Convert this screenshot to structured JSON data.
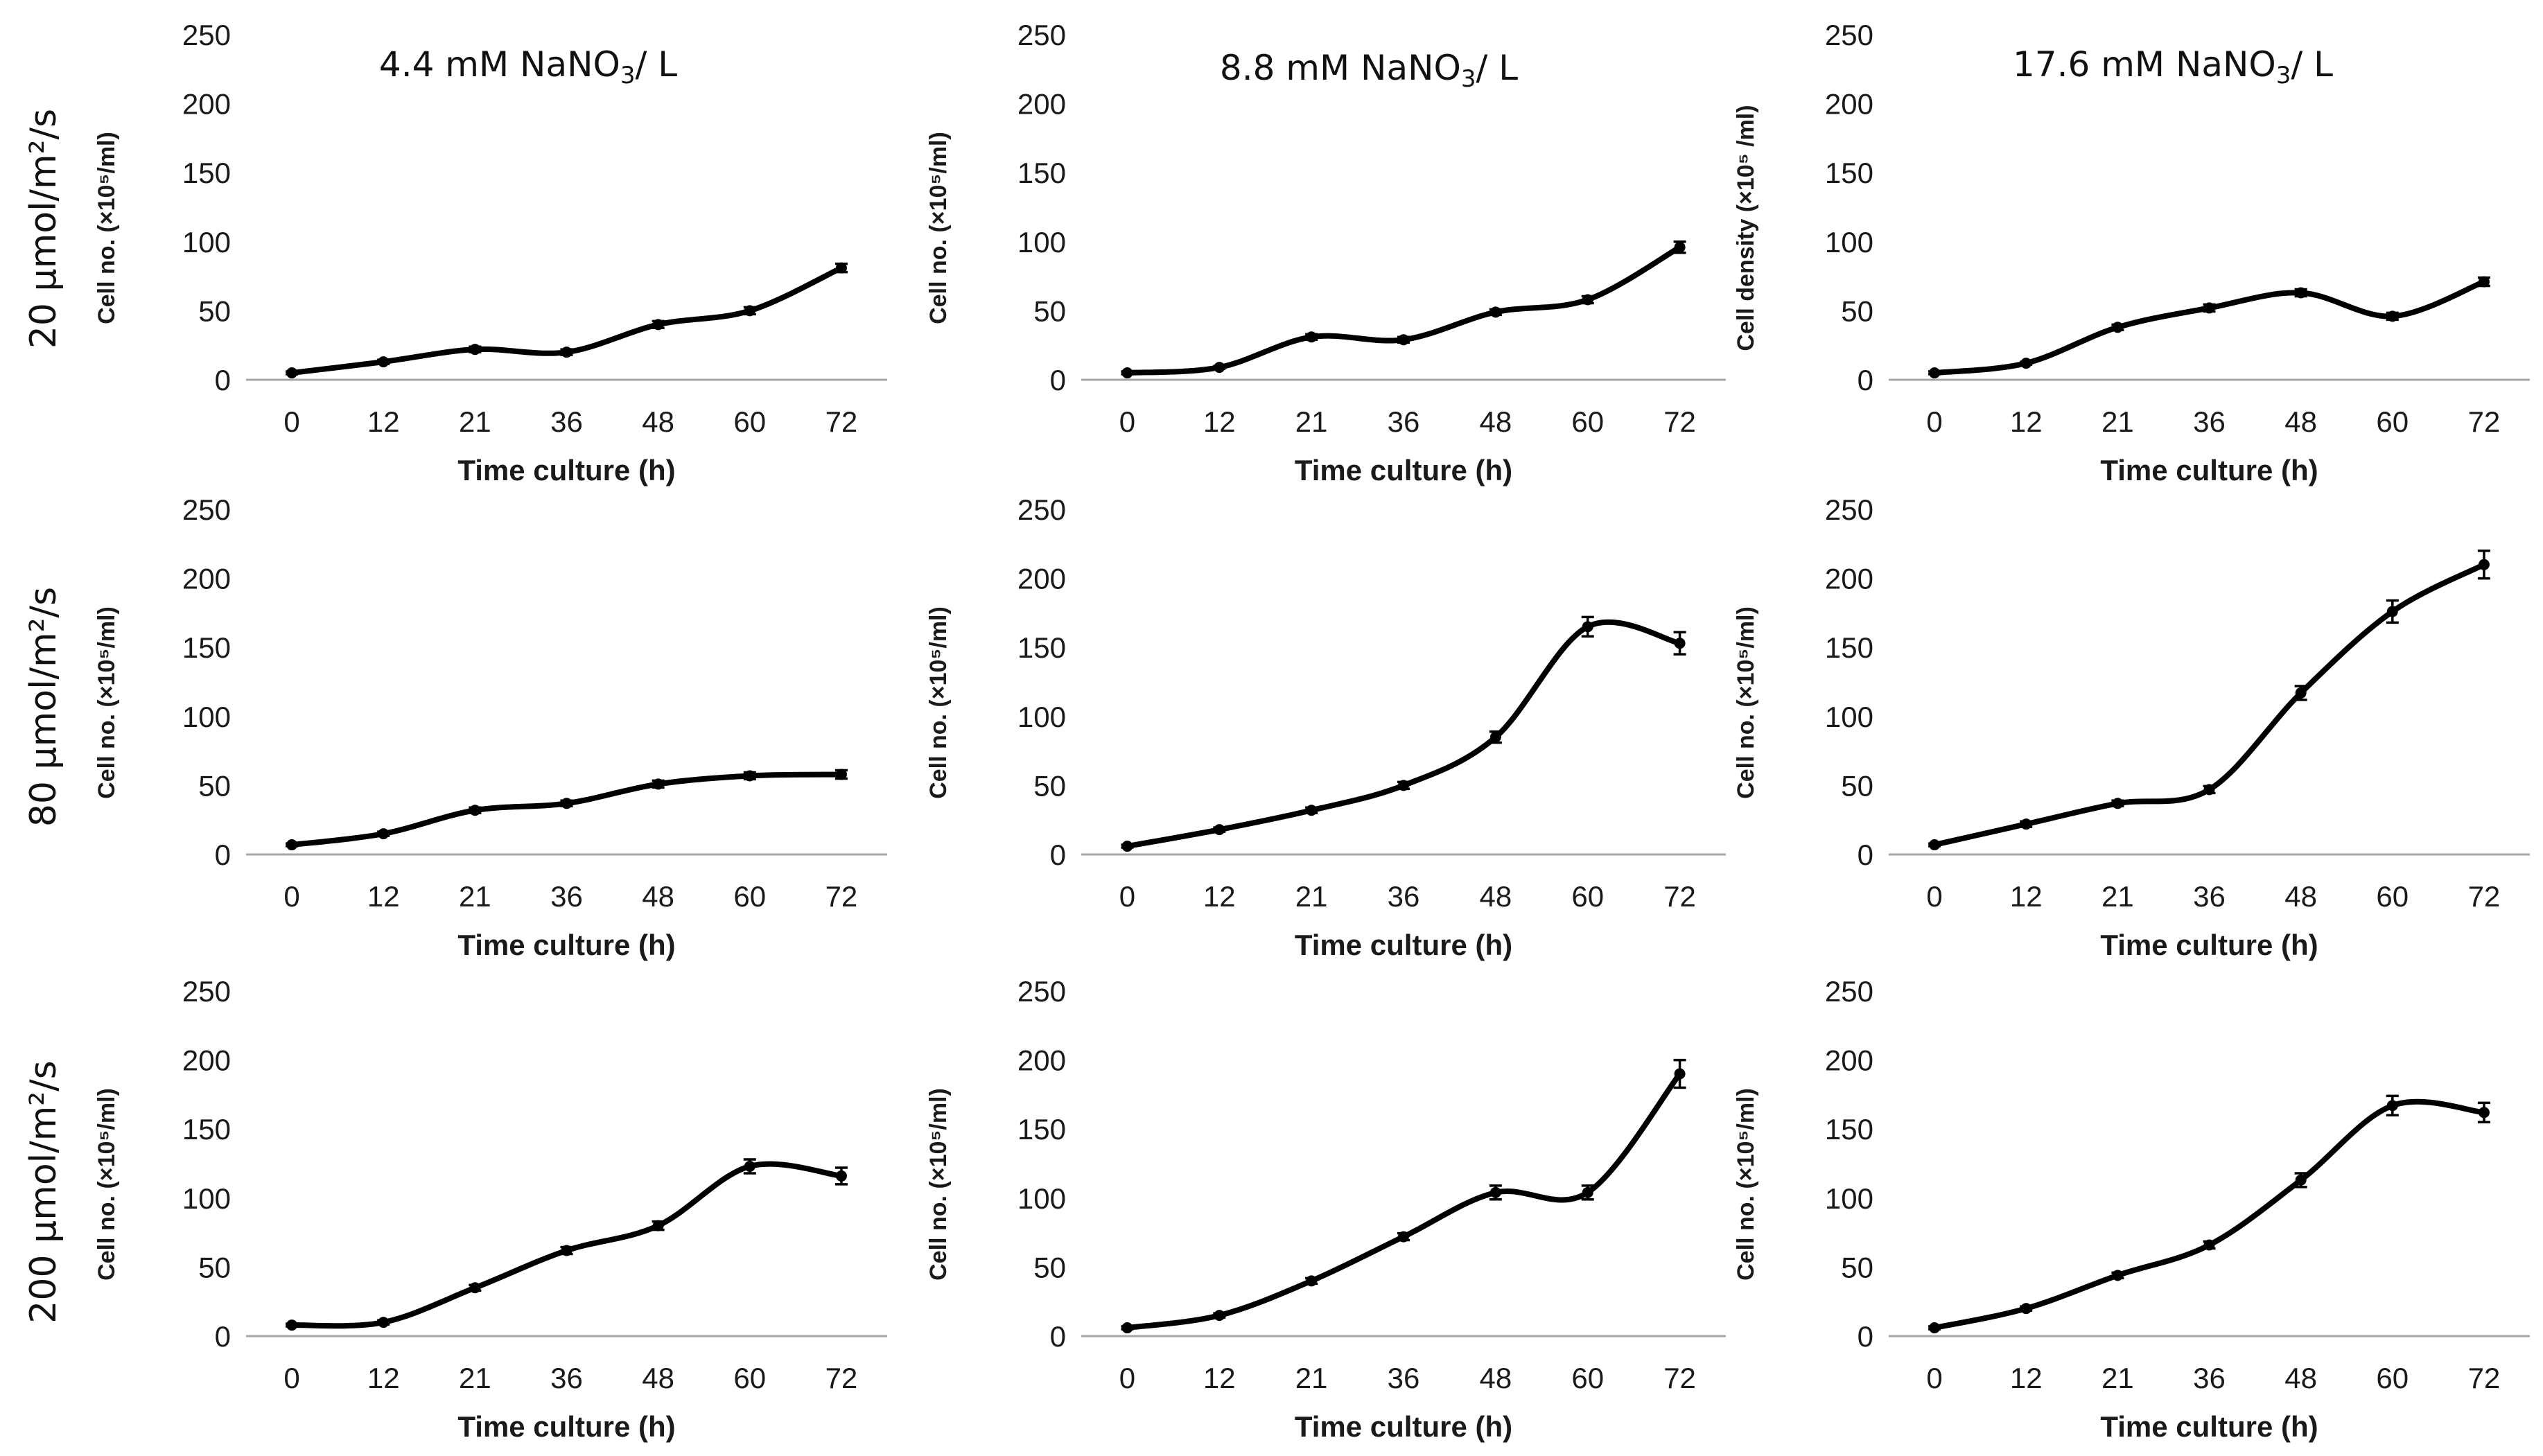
{
  "columns": [
    "4.4 mM NaNO3/ L",
    "8.8 mM NaNO3/ L",
    "17.6 mM NaNO3/ L"
  ],
  "rows": [
    "20 µmol/m²/s",
    "80 µmol/m²/s",
    "200 µmol/m²/s"
  ],
  "chart_data": [
    {
      "type": "line",
      "row": 0,
      "col": 0,
      "categories": [
        "0",
        "12",
        "21",
        "36",
        "48",
        "60",
        "72"
      ],
      "values": [
        5,
        13,
        22,
        20,
        40,
        50,
        81
      ],
      "errors": [
        1,
        1.5,
        2,
        2,
        2.5,
        2.5,
        3
      ],
      "xlabel": "Time culture (h)",
      "ylabel": "Cell no. (×10⁵/ml)",
      "ylim": [
        0,
        250
      ],
      "yticks": [
        0,
        50,
        100,
        150,
        200,
        250
      ]
    },
    {
      "type": "line",
      "row": 0,
      "col": 1,
      "categories": [
        "0",
        "12",
        "21",
        "36",
        "48",
        "60",
        "72"
      ],
      "values": [
        5,
        9,
        31,
        29,
        49,
        58,
        96
      ],
      "errors": [
        1,
        1,
        2,
        2,
        2,
        2.5,
        4
      ],
      "xlabel": "Time culture (h)",
      "ylabel": "Cell no. (×10⁵/ml)",
      "ylim": [
        0,
        250
      ],
      "yticks": [
        0,
        50,
        100,
        150,
        200,
        250
      ]
    },
    {
      "type": "line",
      "row": 0,
      "col": 2,
      "categories": [
        "0",
        "12",
        "21",
        "36",
        "48",
        "60",
        "72"
      ],
      "values": [
        5,
        12,
        38,
        52,
        63,
        46,
        71
      ],
      "errors": [
        1,
        1,
        2,
        2.5,
        2.5,
        2.5,
        3
      ],
      "xlabel": "Time culture (h)",
      "ylabel": "Cell density (×10⁵ /ml)",
      "ylim": [
        0,
        250
      ],
      "yticks": [
        0,
        50,
        100,
        150,
        200,
        250
      ]
    },
    {
      "type": "line",
      "row": 1,
      "col": 0,
      "categories": [
        "0",
        "12",
        "21",
        "36",
        "48",
        "60",
        "72"
      ],
      "values": [
        7,
        15,
        32,
        37,
        51,
        57,
        58
      ],
      "errors": [
        1,
        1.5,
        2,
        2,
        2.5,
        2.5,
        3
      ],
      "xlabel": "Time culture (h)",
      "ylabel": "Cell no. (×10⁵/ml)",
      "ylim": [
        0,
        250
      ],
      "yticks": [
        0,
        50,
        100,
        150,
        200,
        250
      ]
    },
    {
      "type": "line",
      "row": 1,
      "col": 1,
      "categories": [
        "0",
        "12",
        "21",
        "36",
        "48",
        "60",
        "72"
      ],
      "values": [
        6,
        18,
        32,
        50,
        85,
        165,
        153
      ],
      "errors": [
        1,
        1.5,
        2,
        2.5,
        4,
        7,
        8
      ],
      "xlabel": "Time culture (h)",
      "ylabel": "Cell no. (×10⁵/ml)",
      "ylim": [
        0,
        250
      ],
      "yticks": [
        0,
        50,
        100,
        150,
        200,
        250
      ]
    },
    {
      "type": "line",
      "row": 1,
      "col": 2,
      "categories": [
        "0",
        "12",
        "21",
        "36",
        "48",
        "60",
        "72"
      ],
      "values": [
        7,
        22,
        37,
        47,
        117,
        176,
        210
      ],
      "errors": [
        1,
        2,
        2,
        2.5,
        5,
        8,
        10
      ],
      "xlabel": "Time culture (h)",
      "ylabel": "Cell no. (×10⁵/ml)",
      "ylim": [
        0,
        250
      ],
      "yticks": [
        0,
        50,
        100,
        150,
        200,
        250
      ]
    },
    {
      "type": "line",
      "row": 2,
      "col": 0,
      "categories": [
        "0",
        "12",
        "21",
        "36",
        "48",
        "60",
        "72"
      ],
      "values": [
        8,
        10,
        35,
        62,
        80,
        123,
        116
      ],
      "errors": [
        1,
        1.5,
        2,
        2.5,
        3,
        5,
        6
      ],
      "xlabel": "Time culture (h)",
      "ylabel": "Cell no. (×10⁵/ml)",
      "ylim": [
        0,
        250
      ],
      "yticks": [
        0,
        50,
        100,
        150,
        200,
        250
      ]
    },
    {
      "type": "line",
      "row": 2,
      "col": 1,
      "categories": [
        "0",
        "12",
        "21",
        "36",
        "48",
        "60",
        "72"
      ],
      "values": [
        6,
        15,
        40,
        72,
        104,
        104,
        190
      ],
      "errors": [
        1,
        1.5,
        2,
        2.5,
        5,
        5,
        10
      ],
      "xlabel": "Time culture (h)",
      "ylabel": "Cell no. (×10⁵/ml)",
      "ylim": [
        0,
        250
      ],
      "yticks": [
        0,
        50,
        100,
        150,
        200,
        250
      ]
    },
    {
      "type": "line",
      "row": 2,
      "col": 2,
      "categories": [
        "0",
        "12",
        "21",
        "36",
        "48",
        "60",
        "72"
      ],
      "values": [
        6,
        20,
        44,
        66,
        113,
        167,
        162
      ],
      "errors": [
        1,
        1.5,
        2,
        2.5,
        5,
        7,
        7
      ],
      "xlabel": "Time culture (h)",
      "ylabel": "Cell no. (×10⁵/ml)",
      "ylim": [
        0,
        250
      ],
      "yticks": [
        0,
        50,
        100,
        150,
        200,
        250
      ]
    }
  ]
}
